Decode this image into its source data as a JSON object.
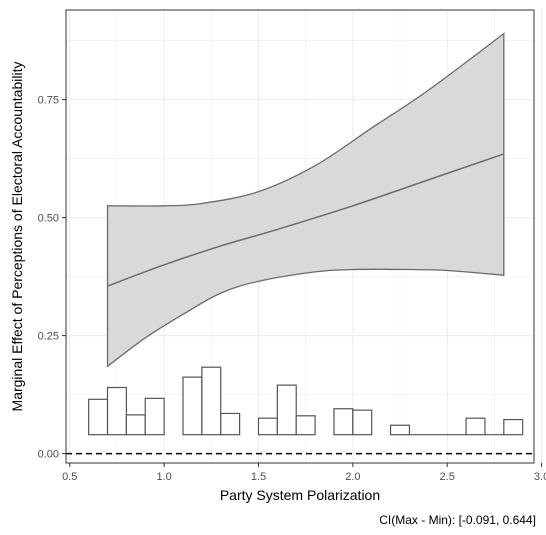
{
  "chart_data": {
    "type": "line",
    "xlabel": "Party System Polarization",
    "ylabel": "Marginal Effect of Perceptions of Electoral Accountability",
    "xlim": [
      0.48,
      2.96
    ],
    "ylim": [
      -0.02,
      0.94
    ],
    "x_ticks": [
      "0.5",
      "1.0",
      "1.5",
      "2.0",
      "2.5",
      "3.0"
    ],
    "y_ticks": [
      "0.00",
      "0.25",
      "0.50",
      "0.75"
    ],
    "grid": true,
    "reference_line": 0,
    "series": [
      {
        "role": "estimate",
        "x": [
          0.7,
          1.0,
          1.3,
          1.6,
          2.0,
          2.4,
          2.8
        ],
        "y": [
          0.355,
          0.4,
          0.44,
          0.475,
          0.525,
          0.58,
          0.635
        ]
      },
      {
        "role": "ci-upper",
        "x": [
          0.7,
          1.0,
          1.2,
          1.5,
          1.8,
          2.1,
          2.4,
          2.8
        ],
        "y": [
          0.525,
          0.525,
          0.53,
          0.555,
          0.61,
          0.69,
          0.77,
          0.89
        ]
      },
      {
        "role": "ci-lower",
        "x": [
          0.7,
          0.9,
          1.1,
          1.3,
          1.5,
          1.8,
          2.0,
          2.3,
          2.5,
          2.8
        ],
        "y": [
          0.185,
          0.245,
          0.295,
          0.34,
          0.365,
          0.385,
          0.39,
          0.39,
          0.388,
          0.378
        ]
      }
    ],
    "histogram": {
      "base": 0.04,
      "bars": [
        {
          "x0": 0.6,
          "x1": 0.7,
          "top": 0.115
        },
        {
          "x0": 0.7,
          "x1": 0.8,
          "top": 0.14
        },
        {
          "x0": 0.8,
          "x1": 0.9,
          "top": 0.082
        },
        {
          "x0": 0.9,
          "x1": 1.0,
          "top": 0.117
        },
        {
          "x0": 1.1,
          "x1": 1.2,
          "top": 0.162
        },
        {
          "x0": 1.2,
          "x1": 1.3,
          "top": 0.183
        },
        {
          "x0": 1.3,
          "x1": 1.4,
          "top": 0.085
        },
        {
          "x0": 1.5,
          "x1": 1.6,
          "top": 0.075
        },
        {
          "x0": 1.6,
          "x1": 1.7,
          "top": 0.145
        },
        {
          "x0": 1.7,
          "x1": 1.8,
          "top": 0.08
        },
        {
          "x0": 1.9,
          "x1": 2.0,
          "top": 0.095
        },
        {
          "x0": 2.0,
          "x1": 2.1,
          "top": 0.092
        },
        {
          "x0": 2.2,
          "x1": 2.3,
          "top": 0.06
        },
        {
          "x0": 2.3,
          "x1": 2.6,
          "top": 0.04
        },
        {
          "x0": 2.6,
          "x1": 2.7,
          "top": 0.075
        },
        {
          "x0": 2.7,
          "x1": 2.8,
          "top": 0.04
        },
        {
          "x0": 2.8,
          "x1": 2.9,
          "top": 0.072
        }
      ]
    },
    "colors": {
      "band": "#d9d9d9",
      "line": "#6b6b6b",
      "grid": "#ebebeb",
      "panel_border": "#333333"
    }
  },
  "note": "CI(Max - Min): [-0.091, 0.644]"
}
